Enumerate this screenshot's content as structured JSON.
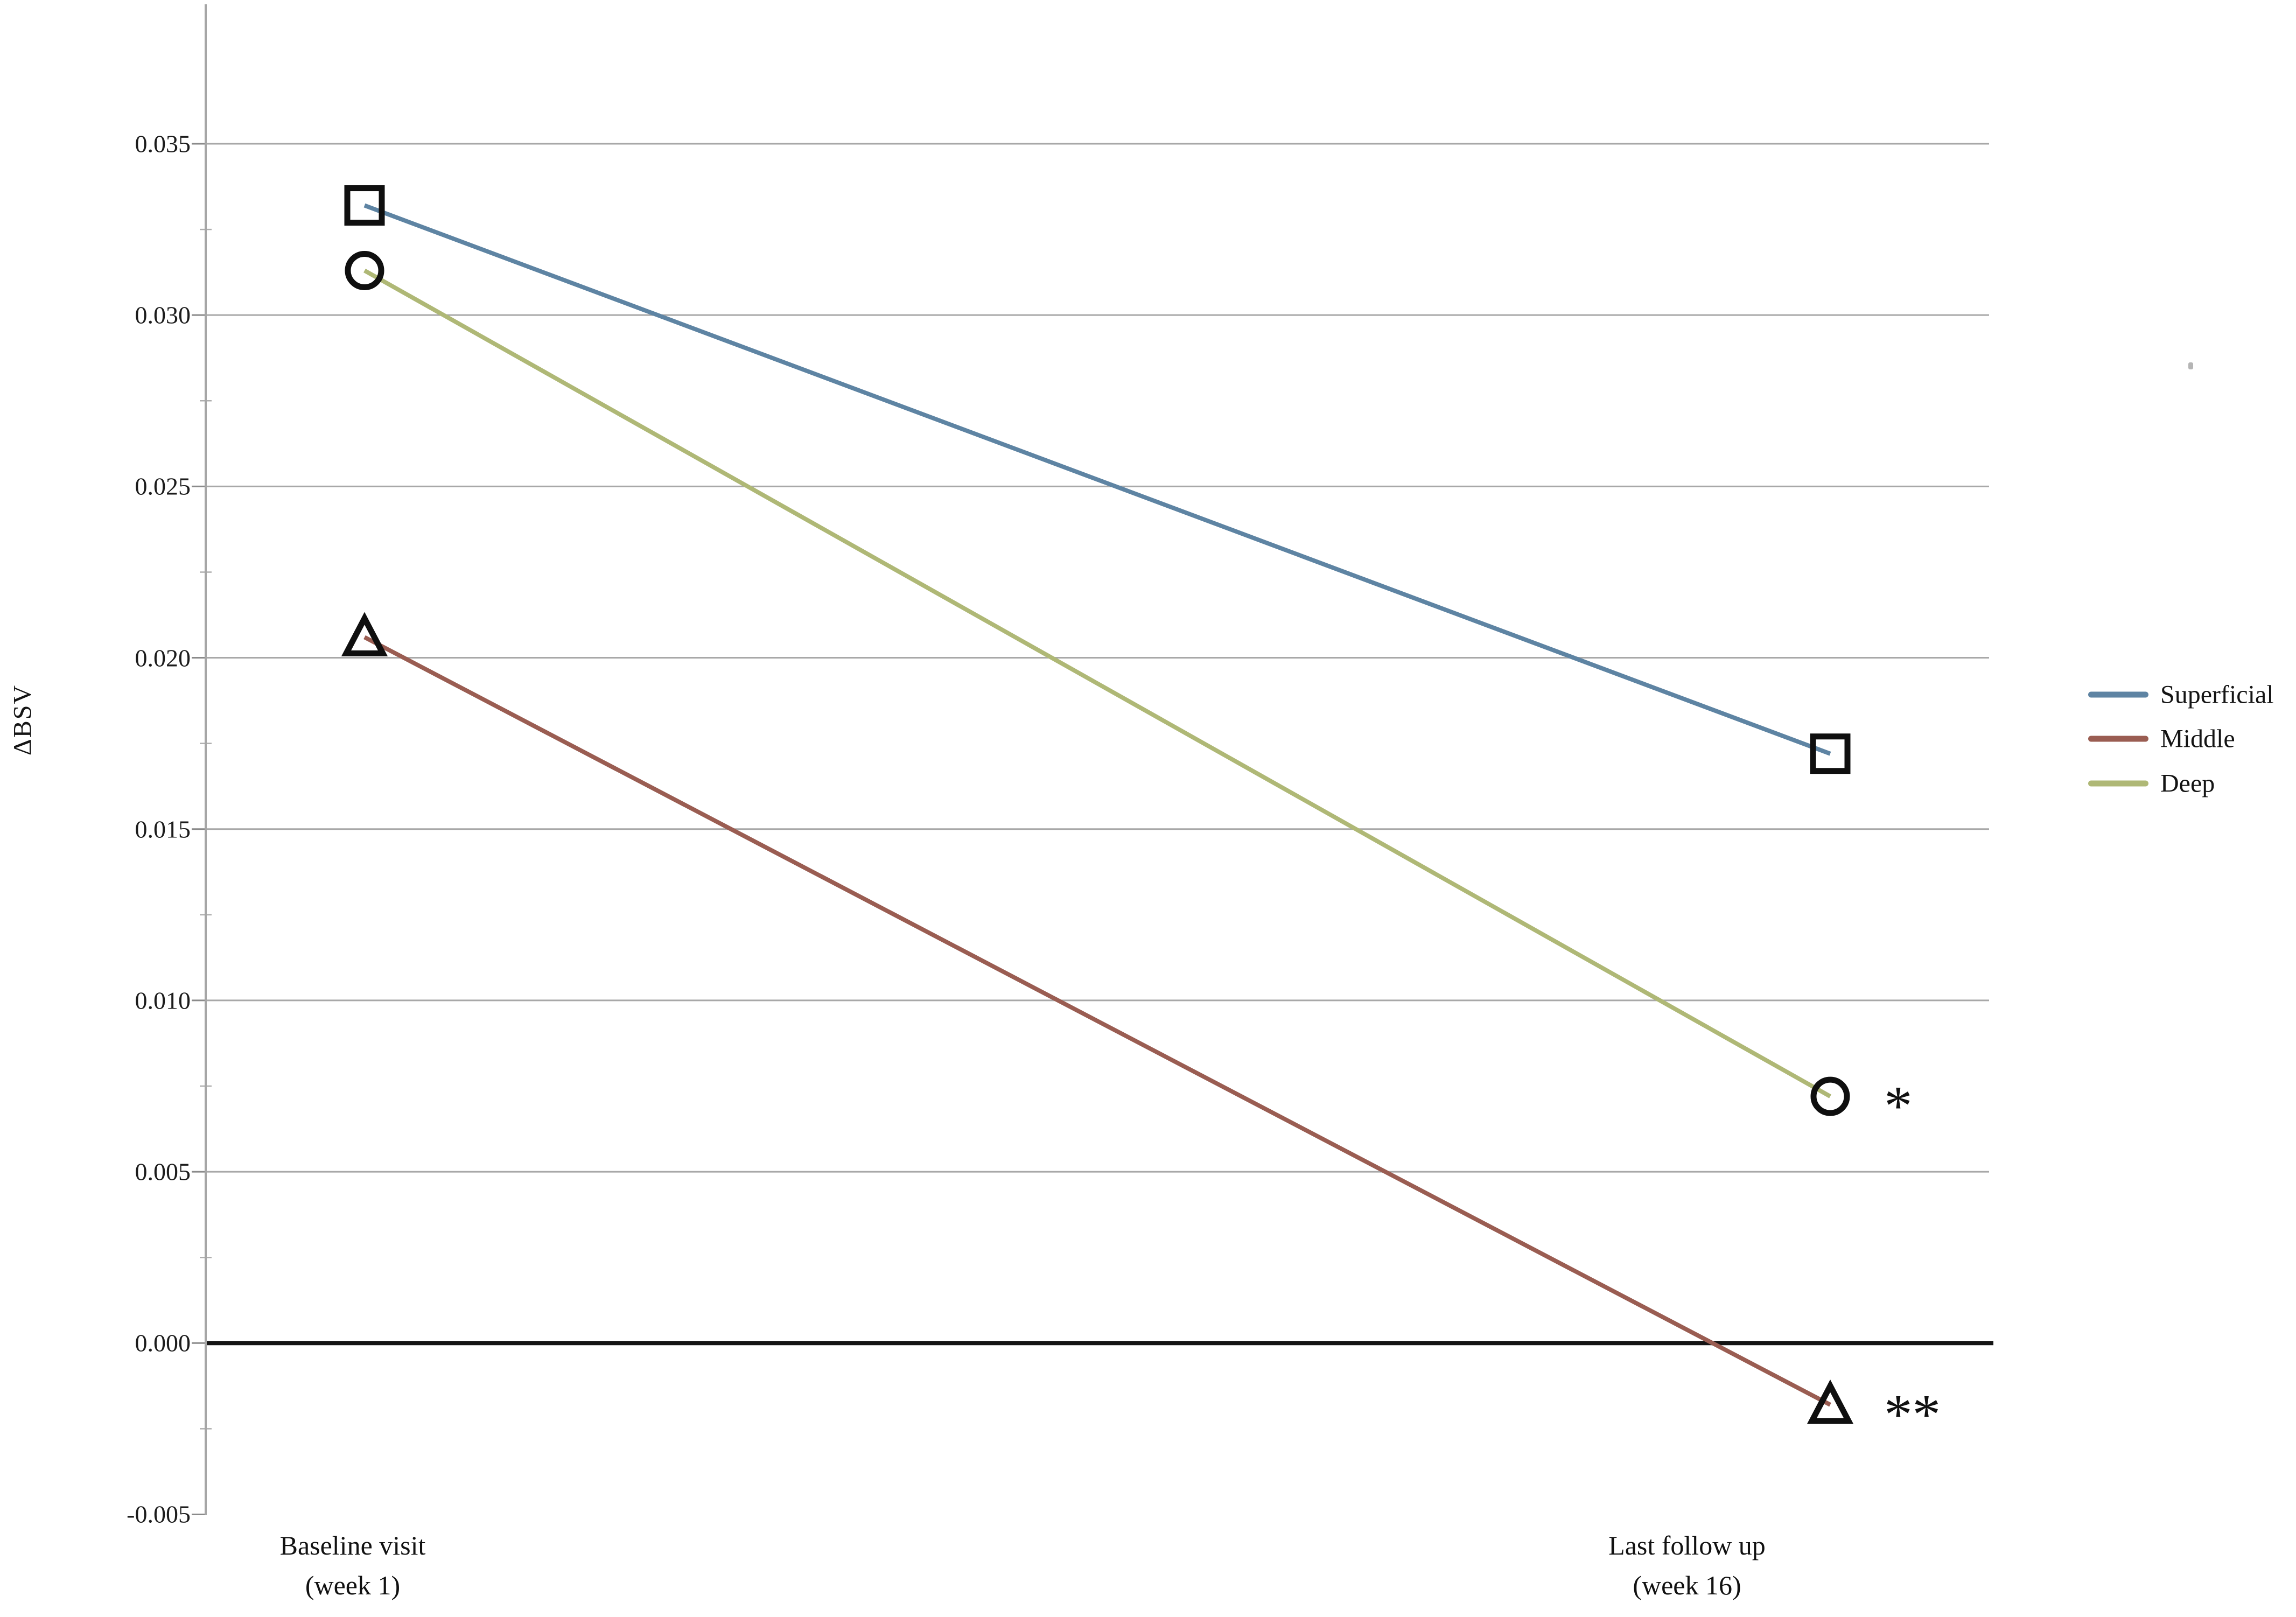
{
  "chart_data": {
    "type": "line",
    "title": "",
    "ylabel": "ΔBSV",
    "x_categories": [
      {
        "line1": "Baseline visit",
        "line2": "(week 1)"
      },
      {
        "line1": "Last follow up",
        "line2": "(week 16)"
      }
    ],
    "y_tick_labels": [
      "0.035",
      "0.030",
      "0.025",
      "0.020",
      "0.015",
      "0.010",
      "0.005",
      "0.000",
      "-0.005"
    ],
    "ylim": [
      -0.005,
      0.039
    ],
    "grid": true,
    "zero_baseline": true,
    "legend_position": "right-outside",
    "series": [
      {
        "name": "Superficial",
        "marker": "square",
        "color": "#5e84a3",
        "values": [
          0.0332,
          0.0172
        ],
        "annotation": ""
      },
      {
        "name": "Middle",
        "marker": "triangle",
        "color": "#9a5d52",
        "values": [
          0.0206,
          -0.0018
        ],
        "annotation": "**"
      },
      {
        "name": "Deep",
        "marker": "circle",
        "color": "#afb876",
        "values": [
          0.0313,
          0.0072
        ],
        "annotation": "*"
      }
    ],
    "marker_outline_color": "#0f0f0f",
    "grid_color": "#a8a8a8",
    "axis_color": "#a6a6a6",
    "zero_line_color": "#141414"
  }
}
